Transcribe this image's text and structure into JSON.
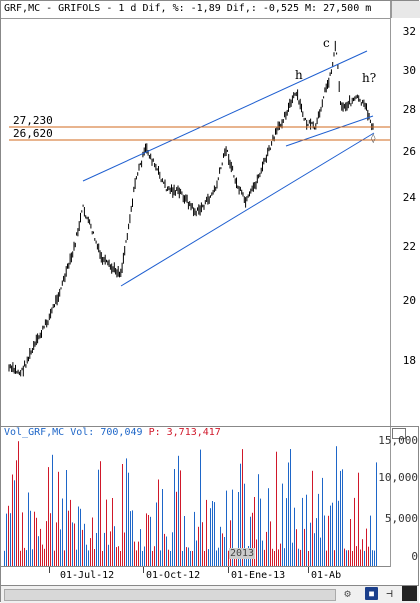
{
  "title": "GRF,MC - GRIFOLS -  1 d Dif, %: -1,89 Dif,: -0,525 M: 27,500 m",
  "price_axis": {
    "labels": [
      "32",
      "30",
      "28",
      "26",
      "24",
      "22",
      "20",
      "18"
    ]
  },
  "levels": {
    "upper": "27,230",
    "lower": "26,620"
  },
  "annotations": {
    "c": "c",
    "h": "h",
    "h2": "h?"
  },
  "volume": {
    "name": "Vol_GRF,MC",
    "vol_label": "Vol:",
    "vol_value": "700,049",
    "p_label": "P:",
    "p_value": "3,713,417",
    "axis_labels": [
      "15,000",
      "10,000",
      "5,000",
      "0"
    ]
  },
  "x_axis": {
    "labels": [
      "01-Jul-12",
      "01-Oct-12",
      "01-Ene-13",
      "01-Ab"
    ],
    "year_marker": "2013"
  },
  "colors": {
    "channel": "#1f5fd0",
    "level_lines": "#d2691e",
    "candles": "#000000",
    "vol_up": "#1e66c8",
    "vol_down": "#d0182a"
  },
  "toolbar": {
    "settings_icon": "settings-icon",
    "save_icon": "save-icon",
    "pin_icon": "pin-icon"
  }
}
